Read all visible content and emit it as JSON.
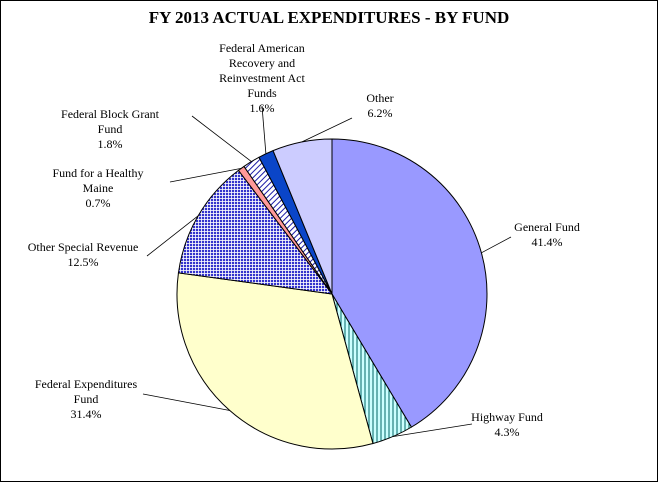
{
  "chart_data": {
    "type": "pie",
    "title": "FY 2013 ACTUAL EXPENDITURES  - BY FUND",
    "slices": [
      {
        "label_lines": [
          "General Fund"
        ],
        "value": 41.4,
        "value_label": "41.4%",
        "fill": "#9999ff",
        "pattern": "none"
      },
      {
        "label_lines": [
          "Highway Fund"
        ],
        "value": 4.3,
        "value_label": "4.3%",
        "fill": "#ccffff",
        "pattern": "vertical-lines",
        "pattern_color": "#006666"
      },
      {
        "label_lines": [
          "Federal Expenditures",
          "Fund"
        ],
        "value": 31.4,
        "value_label": "31.4%",
        "fill": "#ffffcc",
        "pattern": "none"
      },
      {
        "label_lines": [
          "Other Special Revenue"
        ],
        "value": 12.5,
        "value_label": "12.5%",
        "fill": "#3333cc",
        "pattern": "grid",
        "pattern_color": "#ffffff"
      },
      {
        "label_lines": [
          "Fund for a Healthy",
          "Maine"
        ],
        "value": 0.7,
        "value_label": "0.7%",
        "fill": "#ff9999",
        "pattern": "none"
      },
      {
        "label_lines": [
          "Federal Block Grant",
          "Fund"
        ],
        "value": 1.8,
        "value_label": "1.8%",
        "fill": "#ffffff",
        "pattern": "diagonal-lines",
        "pattern_color": "#1a1aa6"
      },
      {
        "label_lines": [
          "Federal American",
          "Recovery and",
          "Reinvestment Act",
          "Funds"
        ],
        "value": 1.6,
        "value_label": "1.6%",
        "fill": "#0a45c8",
        "pattern": "none"
      },
      {
        "label_lines": [
          "Other"
        ],
        "value": 6.2,
        "value_label": "6.2%",
        "fill": "#ccccff",
        "pattern": "none"
      }
    ],
    "start": "top",
    "direction": "clockwise",
    "legend": "none"
  }
}
